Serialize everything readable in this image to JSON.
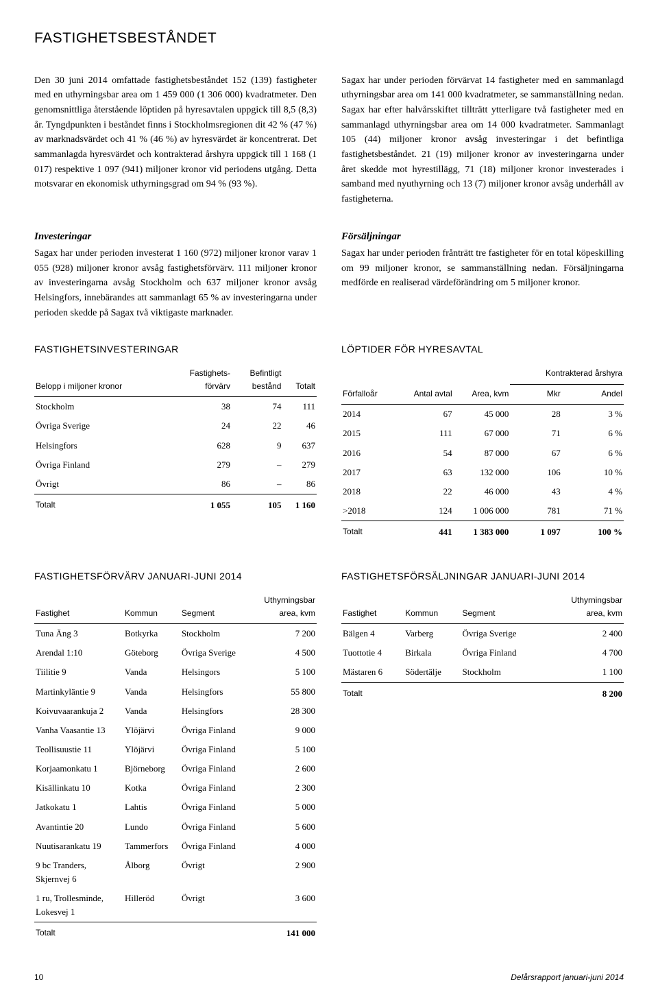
{
  "title": "FASTIGHETSBESTÅNDET",
  "body": {
    "left_para1": "Den 30 juni 2014 omfattade fastighetsbeståndet 152 (139) fastigheter med en uthyrningsbar area om 1 459 000 (1 306 000) kvadratmeter. Den genomsnittliga återstående löptiden på hyresavtalen uppgick till 8,5 (8,3) år. Tyngdpunkten i beståndet finns i Stockholmsregionen dit 42 % (47 %) av marknadsvärdet och 41 % (46 %) av hyresvärdet är koncentrerat. Det sammanlagda hyresvärdet och kontrakterad årshyra uppgick till 1 168 (1 017) respektive 1 097 (941) miljoner kronor vid periodens utgång. Detta motsvarar en ekonomisk uthyrningsgrad om 94 % (93 %).",
    "left_sub": "Investeringar",
    "left_para2": "Sagax har under perioden investerat 1 160 (972) miljoner kronor varav 1 055 (928) miljoner kronor avsåg fastighetsförvärv. 111 miljoner kronor av investeringarna avsåg Stockholm och 637 miljoner kronor avsåg Helsingfors, innebärandes att sammanlagt 65 % av investeringarna under perioden skedde på Sagax två viktigaste marknader.",
    "right_para1": "Sagax har under perioden förvärvat 14 fastigheter med en sammanlagd uthyrningsbar area om 141 000 kvadratmeter, se sammanställning nedan. Sagax har efter halvårsskiftet tillträtt ytterligare två fastigheter med en sammanlagd uthyrningsbar area om 14 000 kvadratmeter. Sammanlagt 105 (44) miljoner kronor avsåg investeringar i det befintliga fastighetsbeståndet. 21 (19) miljoner kronor av investeringarna under året skedde mot hyrestillägg, 71 (18) miljoner kronor investerades i samband med nyuthyrning och 13 (7) miljoner kronor avsåg underhåll av fastigheterna.",
    "right_sub": "Försäljningar",
    "right_para2": "Sagax har under perioden frånträtt tre fastigheter för en total köpeskilling om 99 miljoner kronor, se sammanställning nedan. Försäljningarna medförde en realiserad värdeförändring om 5 miljoner kronor."
  },
  "tbl_invest": {
    "title": "FASTIGHETSINVESTERINGAR",
    "cols": [
      "Belopp i miljoner kronor",
      "Fastighets-\nförvärv",
      "Befintligt\nbestånd",
      "Totalt"
    ],
    "rows": [
      [
        "Stockholm",
        "38",
        "74",
        "111"
      ],
      [
        "Övriga Sverige",
        "24",
        "22",
        "46"
      ],
      [
        "Helsingfors",
        "628",
        "9",
        "637"
      ],
      [
        "Övriga Finland",
        "279",
        "–",
        "279"
      ],
      [
        "Övrigt",
        "86",
        "–",
        "86"
      ]
    ],
    "total": [
      "Totalt",
      "1 055",
      "105",
      "1 160"
    ]
  },
  "tbl_lopt": {
    "title": "LÖPTIDER FÖR HYRESAVTAL",
    "group_col": "Kontrakterad årshyra",
    "cols": [
      "Förfalloår",
      "Antal avtal",
      "Area, kvm",
      "Mkr",
      "Andel"
    ],
    "rows": [
      [
        "2014",
        "67",
        "45 000",
        "28",
        "3 %"
      ],
      [
        "2015",
        "111",
        "67 000",
        "71",
        "6 %"
      ],
      [
        "2016",
        "54",
        "87 000",
        "67",
        "6 %"
      ],
      [
        "2017",
        "63",
        "132 000",
        "106",
        "10 %"
      ],
      [
        "2018",
        "22",
        "46 000",
        "43",
        "4 %"
      ],
      [
        ">2018",
        "124",
        "1 006 000",
        "781",
        "71 %"
      ]
    ],
    "total": [
      "Totalt",
      "441",
      "1 383 000",
      "1 097",
      "100 %"
    ]
  },
  "tbl_forvarv": {
    "title": "FASTIGHETSFÖRVÄRV JANUARI-JUNI 2014",
    "cols": [
      "Fastighet",
      "Kommun",
      "Segment",
      "Uthyrningsbar\narea, kvm"
    ],
    "rows": [
      [
        "Tuna Äng 3",
        "Botkyrka",
        "Stockholm",
        "7 200"
      ],
      [
        "Arendal 1:10",
        "Göteborg",
        "Övriga Sverige",
        "4 500"
      ],
      [
        "Tiilitie 9",
        "Vanda",
        "Helsingors",
        "5 100"
      ],
      [
        "Martinkyläntie 9",
        "Vanda",
        "Helsingfors",
        "55 800"
      ],
      [
        "Koivuvaarankuja 2",
        "Vanda",
        "Helsingfors",
        "28 300"
      ],
      [
        "Vanha Vaasantie 13",
        "Ylöjärvi",
        "Övriga Finland",
        "9 000"
      ],
      [
        "Teollisuustie 11",
        "Ylöjärvi",
        "Övriga Finland",
        "5 100"
      ],
      [
        "Korjaamonkatu 1",
        "Björneborg",
        "Övriga Finland",
        "2 600"
      ],
      [
        "Kisällinkatu 10",
        "Kotka",
        "Övriga Finland",
        "2 300"
      ],
      [
        "Jatkokatu 1",
        "Lahtis",
        "Övriga Finland",
        "5 000"
      ],
      [
        "Avantintie 20",
        "Lundo",
        "Övriga Finland",
        "5 600"
      ],
      [
        "Nuutisarankatu 19",
        "Tammerfors",
        "Övriga Finland",
        "4 000"
      ],
      [
        "9 bc Tranders,\nSkjernvej 6",
        "Ålborg",
        "Övrigt",
        "2 900"
      ],
      [
        "1 ru, Trollesminde,\nLokesvej 1",
        "Hilleröd",
        "Övrigt",
        "3 600"
      ]
    ],
    "total": [
      "Totalt",
      "",
      "",
      "141 000"
    ]
  },
  "tbl_forsalj": {
    "title": "FASTIGHETSFÖRSÄLJNINGAR JANUARI-JUNI 2014",
    "cols": [
      "Fastighet",
      "Kommun",
      "Segment",
      "Uthyrningsbar\narea, kvm"
    ],
    "rows": [
      [
        "Bälgen 4",
        "Varberg",
        "Övriga Sverige",
        "2 400"
      ],
      [
        "Tuottotie 4",
        "Birkala",
        "Övriga Finland",
        "4 700"
      ],
      [
        "Mästaren 6",
        "Södertälje",
        "Stockholm",
        "1 100"
      ]
    ],
    "total": [
      "Totalt",
      "",
      "",
      "8 200"
    ]
  },
  "footer": {
    "page": "10",
    "label": "Delårsrapport januari-juni 2014"
  }
}
